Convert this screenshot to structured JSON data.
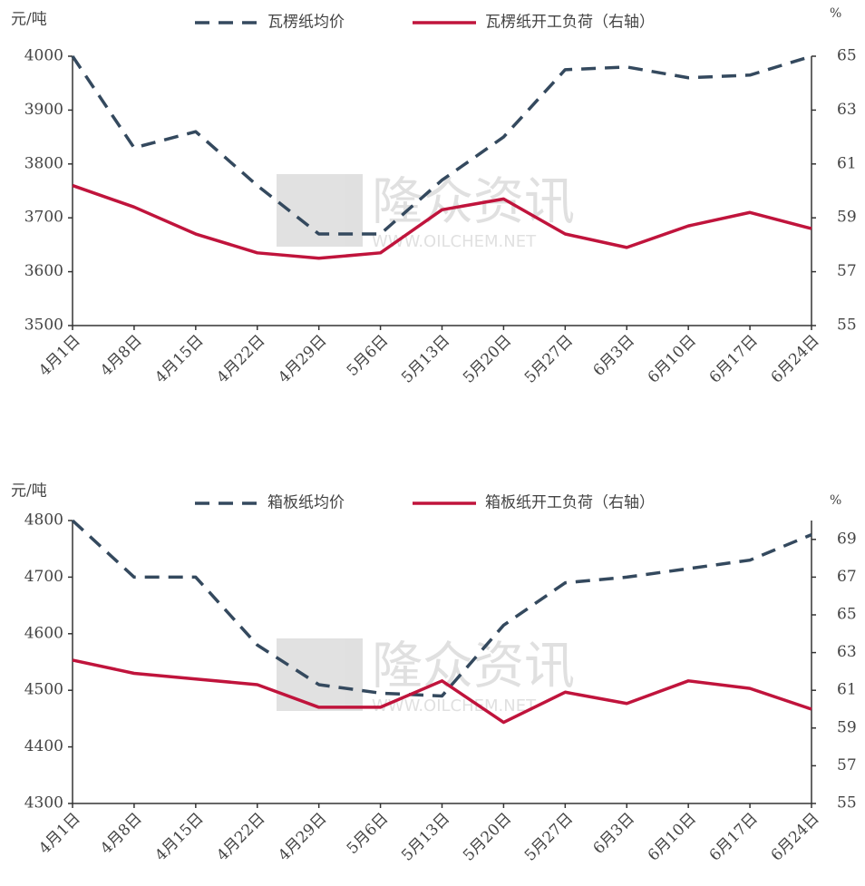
{
  "chart_data": [
    {
      "type": "line",
      "ylabel": "元/吨",
      "y2label": "%",
      "watermark": {
        "text": "隆众资讯",
        "url": "WWW.OILCHEM.NET"
      },
      "categories": [
        "4月1日",
        "4月8日",
        "4月15日",
        "4月22日",
        "4月29日",
        "5月6日",
        "5月13日",
        "5月20日",
        "5月27日",
        "6月3日",
        "6月10日",
        "6月17日",
        "6月24日"
      ],
      "series": [
        {
          "name": "瓦楞纸均价",
          "color": "#34495e",
          "style": "dashed",
          "axis": "y",
          "values": [
            4000,
            3830,
            3860,
            3760,
            3670,
            3670,
            3770,
            3850,
            3975,
            3980,
            3960,
            3965,
            4000
          ]
        },
        {
          "name": "瓦楞纸开工负荷（右轴）",
          "color": "#c0143c",
          "style": "solid",
          "axis": "y2",
          "values": [
            60.2,
            59.4,
            58.4,
            57.7,
            57.5,
            57.7,
            59.3,
            59.7,
            58.4,
            57.9,
            58.7,
            59.2,
            58.6
          ]
        }
      ],
      "ylim": [
        3500,
        4000
      ],
      "yticks": [
        3500,
        3600,
        3700,
        3800,
        3900,
        4000
      ],
      "y2lim": [
        55,
        65
      ],
      "y2ticks": [
        55,
        57,
        59,
        61,
        63,
        65
      ],
      "legend": "top"
    },
    {
      "type": "line",
      "ylabel": "元/吨",
      "y2label": "%",
      "watermark": {
        "text": "隆众资讯",
        "url": "WWW.OILCHEM.NET"
      },
      "categories": [
        "4月1日",
        "4月8日",
        "4月15日",
        "4月22日",
        "4月29日",
        "5月6日",
        "5月13日",
        "5月20日",
        "5月27日",
        "6月3日",
        "6月10日",
        "6月17日",
        "6月24日"
      ],
      "series": [
        {
          "name": "箱板纸均价",
          "color": "#34495e",
          "style": "dashed",
          "axis": "y",
          "values": [
            4800,
            4700,
            4700,
            4580,
            4510,
            4495,
            4490,
            4615,
            4690,
            4700,
            4715,
            4730,
            4775
          ]
        },
        {
          "name": "箱板纸开工负荷（右轴）",
          "color": "#c0143c",
          "style": "solid",
          "axis": "y2",
          "values": [
            62.6,
            61.9,
            61.6,
            61.3,
            60.1,
            60.1,
            61.5,
            59.3,
            60.9,
            60.3,
            61.5,
            61.1,
            60.0
          ]
        }
      ],
      "ylim": [
        4300,
        4800
      ],
      "yticks": [
        4300,
        4400,
        4500,
        4600,
        4700,
        4800
      ],
      "y2lim": [
        55,
        70
      ],
      "y2ticks": [
        55,
        57,
        59,
        61,
        63,
        65,
        67,
        69
      ],
      "legend": "top"
    }
  ]
}
